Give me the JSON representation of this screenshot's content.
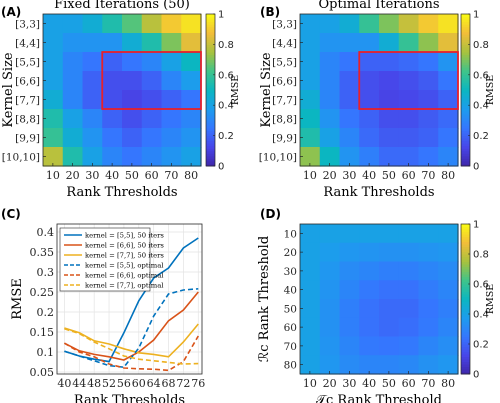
{
  "colorbar": {
    "stops": [
      "#3e26a8",
      "#4845e9",
      "#3576fe",
      "#1d9cee",
      "#0bb6c1",
      "#3fc48a",
      "#a7c23e",
      "#f2bd39",
      "#f9fb15"
    ],
    "ticks": [
      "1",
      "0.8",
      "0.6",
      "0.4",
      "0.2",
      "0"
    ],
    "label": "RMSE"
  },
  "chart_data": [
    {
      "type": "heatmap",
      "panel": "(A)",
      "title": "Fixed Iterations (50)",
      "xlabel": "Rank Thresholds",
      "ylabel": "Kernel Size",
      "x": [
        "10",
        "20",
        "30",
        "40",
        "50",
        "60",
        "70",
        "80"
      ],
      "y": [
        "[3,3]",
        "[4,4]",
        "[5,5]",
        "[6,6]",
        "[7,7]",
        "[8,8]",
        "[9,9]",
        "[10,10]"
      ],
      "clim": [
        0,
        1
      ],
      "highlight": {
        "color": "#e8202a",
        "rows": [
          "[5,5]",
          "[7,7]"
        ],
        "cols": [
          "40",
          "80"
        ]
      },
      "values": [
        [
          0.4,
          0.4,
          0.45,
          0.55,
          0.65,
          0.78,
          0.9,
          0.95
        ],
        [
          0.4,
          0.35,
          0.35,
          0.35,
          0.45,
          0.55,
          0.7,
          0.85
        ],
        [
          0.4,
          0.3,
          0.25,
          0.2,
          0.25,
          0.3,
          0.4,
          0.5
        ],
        [
          0.4,
          0.3,
          0.2,
          0.15,
          0.15,
          0.2,
          0.3,
          0.38
        ],
        [
          0.45,
          0.3,
          0.2,
          0.15,
          0.12,
          0.15,
          0.2,
          0.25
        ],
        [
          0.55,
          0.4,
          0.3,
          0.2,
          0.15,
          0.2,
          0.25,
          0.3
        ],
        [
          0.6,
          0.45,
          0.35,
          0.25,
          0.2,
          0.25,
          0.3,
          0.35
        ],
        [
          0.78,
          0.55,
          0.4,
          0.3,
          0.25,
          0.3,
          0.35,
          0.4
        ]
      ]
    },
    {
      "type": "heatmap",
      "panel": "(B)",
      "title": "Optimal Iterations",
      "xlabel": "Rank Thresholds",
      "ylabel": "Kernel Size",
      "x": [
        "10",
        "20",
        "30",
        "40",
        "50",
        "60",
        "70",
        "80"
      ],
      "y": [
        "[3,3]",
        "[4,4]",
        "[5,5]",
        "[6,6]",
        "[7,7]",
        "[8,8]",
        "[9,9]",
        "[10,10]"
      ],
      "clim": [
        0,
        1
      ],
      "highlight": {
        "color": "#e8202a",
        "rows": [
          "[5,5]",
          "[7,7]"
        ],
        "cols": [
          "40",
          "80"
        ]
      },
      "values": [
        [
          0.4,
          0.4,
          0.45,
          0.6,
          0.7,
          0.8,
          0.9,
          0.95
        ],
        [
          0.4,
          0.35,
          0.35,
          0.35,
          0.45,
          0.6,
          0.72,
          0.85
        ],
        [
          0.4,
          0.3,
          0.25,
          0.2,
          0.2,
          0.22,
          0.25,
          0.35
        ],
        [
          0.4,
          0.3,
          0.2,
          0.15,
          0.13,
          0.15,
          0.18,
          0.25
        ],
        [
          0.45,
          0.3,
          0.2,
          0.15,
          0.12,
          0.13,
          0.15,
          0.2
        ],
        [
          0.5,
          0.35,
          0.25,
          0.2,
          0.15,
          0.15,
          0.18,
          0.22
        ],
        [
          0.55,
          0.4,
          0.3,
          0.22,
          0.18,
          0.18,
          0.2,
          0.25
        ],
        [
          0.72,
          0.5,
          0.35,
          0.28,
          0.22,
          0.22,
          0.25,
          0.3
        ]
      ]
    },
    {
      "type": "line",
      "panel": "(C)",
      "xlabel": "Rank Thresholds",
      "ylabel": "RMSE",
      "xticks": [
        "40",
        "44",
        "48",
        "52",
        "56",
        "60",
        "64",
        "68",
        "72",
        "76"
      ],
      "yticks": [
        "0.05",
        "0.1",
        "0.15",
        "0.2",
        "0.25",
        "0.3",
        "0.35",
        "0.4"
      ],
      "xlim": [
        38,
        77
      ],
      "ylim": [
        0.045,
        0.42
      ],
      "grid": true,
      "legend": "top-left",
      "series": [
        {
          "name": "kernel = [5,5], 50 iters",
          "color": "#0072bd",
          "dash": "solid",
          "x": [
            40,
            44,
            48,
            52,
            56,
            60,
            64,
            68,
            72,
            76
          ],
          "y": [
            0.102,
            0.09,
            0.082,
            0.076,
            0.148,
            0.228,
            0.285,
            0.31,
            0.36,
            0.385
          ]
        },
        {
          "name": "kernel = [6,6], 50 iters",
          "color": "#d95319",
          "dash": "solid",
          "x": [
            40,
            44,
            48,
            52,
            56,
            60,
            64,
            68,
            72,
            76
          ],
          "y": [
            0.122,
            0.103,
            0.094,
            0.088,
            0.08,
            0.1,
            0.13,
            0.178,
            0.205,
            0.25
          ]
        },
        {
          "name": "kernel = [7,7], 50 iters",
          "color": "#edb120",
          "dash": "solid",
          "x": [
            40,
            44,
            48,
            52,
            56,
            60,
            64,
            68,
            72,
            76
          ],
          "y": [
            0.16,
            0.148,
            0.128,
            0.12,
            0.108,
            0.098,
            0.094,
            0.088,
            0.125,
            0.17
          ]
        },
        {
          "name": "kernel = [5,5], optimal",
          "color": "#0072bd",
          "dash": "dashed",
          "x": [
            40,
            44,
            48,
            52,
            56,
            60,
            64,
            68,
            72,
            76
          ],
          "y": [
            0.102,
            0.09,
            0.078,
            0.066,
            0.062,
            0.11,
            0.19,
            0.245,
            0.255,
            0.258
          ]
        },
        {
          "name": "kernel = [6,6], optimal",
          "color": "#d95319",
          "dash": "dashed",
          "x": [
            40,
            44,
            48,
            52,
            56,
            60,
            64,
            68,
            72,
            76
          ],
          "y": [
            0.122,
            0.1,
            0.088,
            0.07,
            0.06,
            0.058,
            0.057,
            0.054,
            0.076,
            0.14
          ]
        },
        {
          "name": "kernel = [7,7], optimal",
          "color": "#edb120",
          "dash": "dashed",
          "x": [
            40,
            44,
            48,
            52,
            56,
            60,
            64,
            68,
            72,
            76
          ],
          "y": [
            0.158,
            0.146,
            0.125,
            0.108,
            0.09,
            0.082,
            0.078,
            0.074,
            0.07,
            0.071
          ]
        }
      ]
    },
    {
      "type": "heatmap",
      "panel": "(D)",
      "xlabel": "𝒯c Rank Threshold",
      "ylabel": "ℛc Rank Threshold",
      "x": [
        "10",
        "20",
        "30",
        "40",
        "50",
        "60",
        "70",
        "80"
      ],
      "y": [
        "10",
        "20",
        "30",
        "40",
        "50",
        "60",
        "70",
        "80"
      ],
      "clim": [
        0,
        1
      ],
      "values": [
        [
          0.4,
          0.4,
          0.4,
          0.4,
          0.4,
          0.4,
          0.4,
          0.4
        ],
        [
          0.4,
          0.38,
          0.36,
          0.35,
          0.34,
          0.34,
          0.35,
          0.36
        ],
        [
          0.4,
          0.36,
          0.32,
          0.3,
          0.28,
          0.28,
          0.3,
          0.32
        ],
        [
          0.4,
          0.35,
          0.3,
          0.26,
          0.24,
          0.24,
          0.27,
          0.3
        ],
        [
          0.4,
          0.34,
          0.28,
          0.24,
          0.22,
          0.22,
          0.25,
          0.28
        ],
        [
          0.4,
          0.34,
          0.28,
          0.24,
          0.22,
          0.23,
          0.26,
          0.3
        ],
        [
          0.4,
          0.35,
          0.3,
          0.26,
          0.25,
          0.26,
          0.3,
          0.33
        ],
        [
          0.4,
          0.36,
          0.32,
          0.3,
          0.3,
          0.31,
          0.34,
          0.36
        ]
      ]
    }
  ]
}
